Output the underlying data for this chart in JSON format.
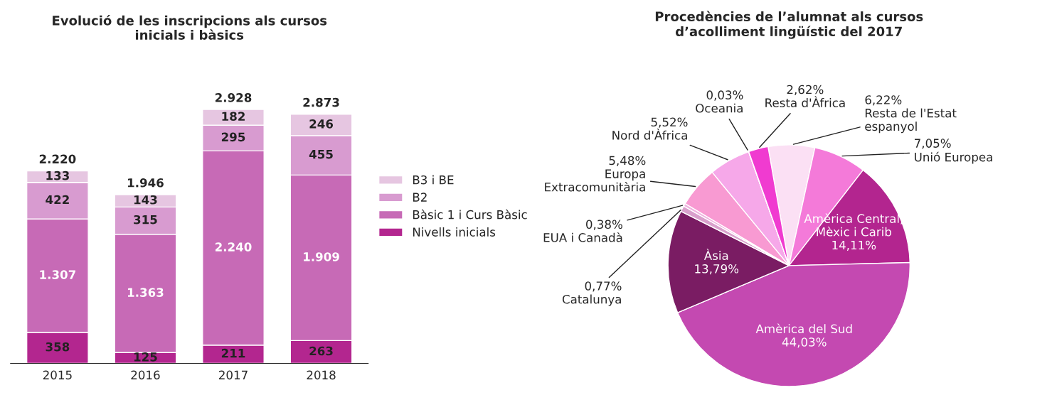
{
  "chart_data": [
    {
      "type": "bar",
      "title": "Evolució de les inscripcions als cursos\ninicials i bàsics",
      "categories": [
        "2015",
        "2016",
        "2017",
        "2018"
      ],
      "stacked": true,
      "legend": "right",
      "totals": [
        "2.220",
        "1.946",
        "2.928",
        "2.873"
      ],
      "series": [
        {
          "name": "Nivells inicials",
          "color": "#b3268f",
          "values": [
            358,
            125,
            211,
            263
          ],
          "value_labels": [
            "358",
            "125",
            "211",
            "263"
          ]
        },
        {
          "name": "Bàsic 1 i Curs Bàsic",
          "color": "#c76ab6",
          "values": [
            1307,
            1363,
            2240,
            1909
          ],
          "value_labels": [
            "1.307",
            "1.363",
            "2.240",
            "1.909"
          ]
        },
        {
          "name": "B2",
          "color": "#d89bd0",
          "values": [
            422,
            315,
            295,
            455
          ],
          "value_labels": [
            "422",
            "315",
            "295",
            "455"
          ]
        },
        {
          "name": "B3 i BE",
          "color": "#e6c6e1",
          "values": [
            133,
            143,
            182,
            246
          ],
          "value_labels": [
            "133",
            "143",
            "182",
            "246"
          ]
        }
      ]
    },
    {
      "type": "pie",
      "title": "Procedències de l’alumnat als cursos\nd’acolliment lingüístic del 2017",
      "categories": [
        "Resta de l'Estat\nespanyol",
        "Unió Europea",
        "Amèrica Central,\nMèxic i Carib",
        "Amèrica del Sud",
        "Àsia",
        "Catalunya",
        "EUA i Canadà",
        "Europa\nExtracomunitària",
        "Nord d'Àfrica",
        "Oceania",
        "Resta d'Àfrica"
      ],
      "values": [
        6.22,
        7.05,
        14.11,
        44.03,
        13.79,
        0.77,
        0.38,
        5.48,
        5.52,
        0.03,
        2.62
      ],
      "value_labels": [
        "6,22%",
        "7,05%",
        "14,11%",
        "44,03%",
        "13,79%",
        "0,77%",
        "0,38%",
        "5,48%",
        "5,52%",
        "0,03%",
        "2,62%"
      ],
      "colors": [
        "#fbe0f4",
        "#f47ad9",
        "#b3258f",
        "#c449b1",
        "#7a1c63",
        "#d9a0cc",
        "#efb3e0",
        "#f89ad2",
        "#f6a8e9",
        "#c99abb",
        "#f03bd0"
      ]
    }
  ]
}
